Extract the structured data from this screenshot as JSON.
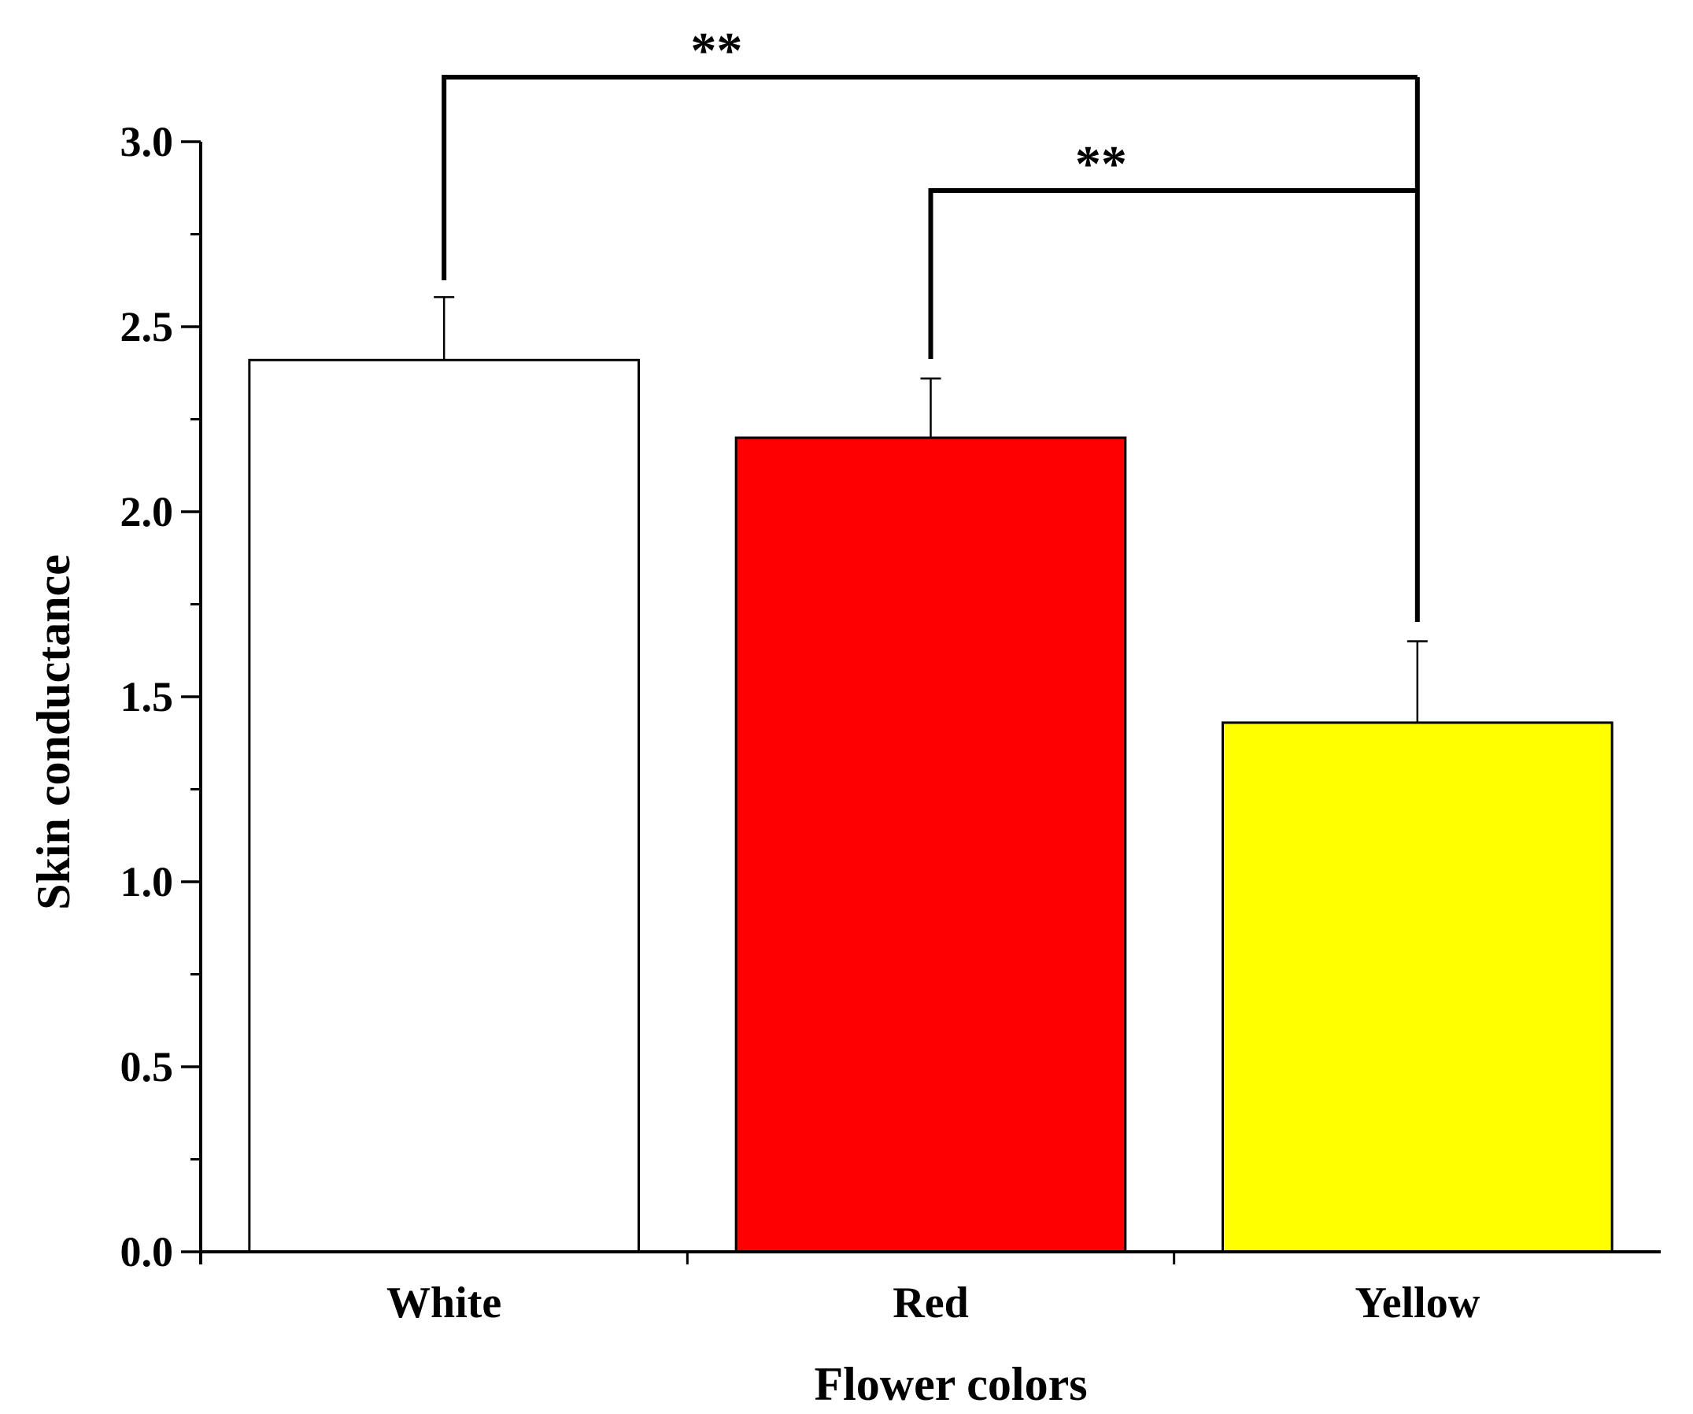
{
  "chart_data": {
    "type": "bar",
    "categories": [
      "White",
      "Red",
      "Yellow"
    ],
    "values": [
      2.41,
      2.2,
      1.43
    ],
    "errors": [
      0.17,
      0.16,
      0.22
    ],
    "colors": [
      "#ffffff",
      "#ff0000",
      "#ffff00"
    ],
    "title": "",
    "xlabel": "Flower colors",
    "ylabel": "Skin conductance",
    "ylim": [
      0,
      3.0
    ],
    "yticks": [
      "0.0",
      "0.5",
      "1.0",
      "1.5",
      "2.0",
      "2.5",
      "3.0"
    ],
    "grid": false,
    "legend": "none",
    "significance": [
      {
        "from": "White",
        "to": "Yellow",
        "label": "**"
      },
      {
        "from": "Red",
        "to": "Yellow",
        "label": "**"
      }
    ]
  }
}
